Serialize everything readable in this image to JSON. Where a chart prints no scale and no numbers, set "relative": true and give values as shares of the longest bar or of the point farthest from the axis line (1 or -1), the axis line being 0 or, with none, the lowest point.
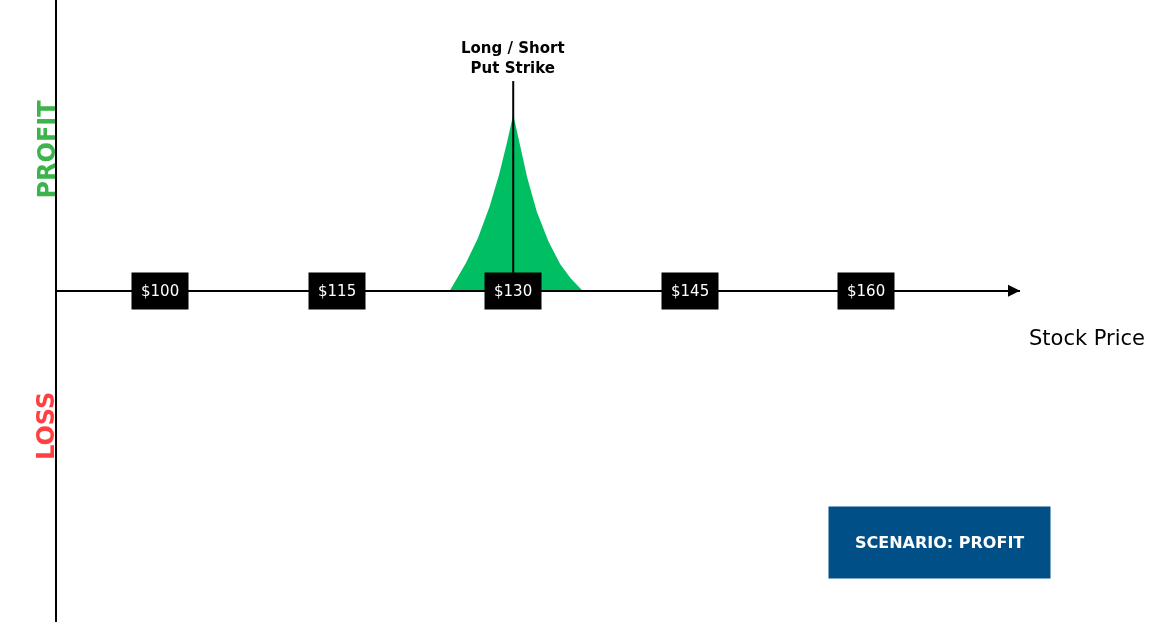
{
  "chart_data": {
    "type": "area",
    "relative": true,
    "xlabel": "Stock Price",
    "x": [
      124.6,
      125.3,
      126,
      127,
      128,
      128.8,
      129.5,
      130,
      130.5,
      131.2,
      132,
      133,
      134,
      134.9,
      135.9
    ],
    "series": [
      {
        "color": "#00bf63",
        "values": [
          0,
          0.08,
          0.16,
          0.3,
          0.48,
          0.66,
          0.85,
          1,
          0.85,
          0.64,
          0.45,
          0.28,
          0.15,
          0.07,
          0
        ]
      }
    ],
    "xlim": [
      91.2,
      173.1
    ],
    "xticks": [
      {
        "value": 100,
        "label": "$100"
      },
      {
        "value": 115,
        "label": "$115"
      },
      {
        "value": 130,
        "label": "$130"
      },
      {
        "value": 145,
        "label": "$145"
      },
      {
        "value": 160,
        "label": "$160"
      }
    ],
    "annotations": [
      "PROFIT",
      "LOSS",
      "SCENARIO: PROFIT"
    ],
    "ref_lines": [
      {
        "axis": "x",
        "value": 130,
        "color": "#000000",
        "label": "Long / Short\nPut Strike"
      }
    ],
    "marker": "none"
  }
}
